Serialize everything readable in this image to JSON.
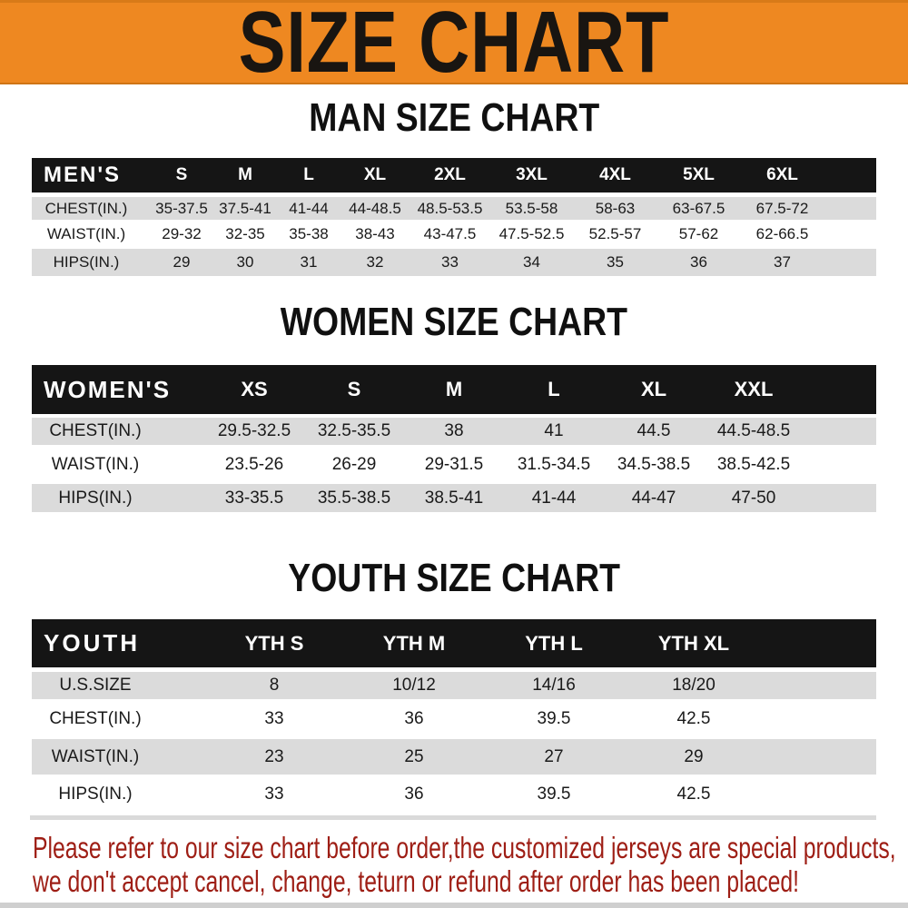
{
  "banner": {
    "title": "SIZE CHART"
  },
  "colors": {
    "banner_orange": "#ee8821",
    "header_black": "#151515",
    "row_gray": "#dbdbdb",
    "footer_red": "#9e1e15"
  },
  "sections": {
    "men": {
      "title": "MAN SIZE CHART",
      "table": {
        "label": "MEN'S",
        "columns": [
          "S",
          "M",
          "L",
          "XL",
          "2XL",
          "3XL",
          "4XL",
          "5XL",
          "6XL"
        ],
        "rows": [
          {
            "label": "CHEST(IN.)",
            "values": [
              "35-37.5",
              "37.5-41",
              "41-44",
              "44-48.5",
              "48.5-53.5",
              "53.5-58",
              "58-63",
              "63-67.5",
              "67.5-72"
            ]
          },
          {
            "label": "WAIST(IN.)",
            "values": [
              "29-32",
              "32-35",
              "35-38",
              "38-43",
              "43-47.5",
              "47.5-52.5",
              "52.5-57",
              "57-62",
              "62-66.5"
            ]
          },
          {
            "label": "HIPS(IN.)",
            "values": [
              "29",
              "30",
              "31",
              "32",
              "33",
              "34",
              "35",
              "36",
              "37"
            ]
          }
        ]
      }
    },
    "women": {
      "title": "WOMEN SIZE CHART",
      "table": {
        "label": "WOMEN'S",
        "columns": [
          "XS",
          "S",
          "M",
          "L",
          "XL",
          "XXL"
        ],
        "rows": [
          {
            "label": "CHEST(IN.)",
            "values": [
              "29.5-32.5",
              "32.5-35.5",
              "38",
              "41",
              "44.5",
              "44.5-48.5"
            ]
          },
          {
            "label": "WAIST(IN.)",
            "values": [
              "23.5-26",
              "26-29",
              "29-31.5",
              "31.5-34.5",
              "34.5-38.5",
              "38.5-42.5"
            ]
          },
          {
            "label": "HIPS(IN.)",
            "values": [
              "33-35.5",
              "35.5-38.5",
              "38.5-41",
              "41-44",
              "44-47",
              "47-50"
            ]
          }
        ]
      }
    },
    "youth": {
      "title": "YOUTH SIZE CHART",
      "table": {
        "label": "YOUTH",
        "columns": [
          "YTH S",
          "YTH M",
          "YTH L",
          "YTH XL"
        ],
        "rows": [
          {
            "label": "U.S.SIZE",
            "values": [
              "8",
              "10/12",
              "14/16",
              "18/20"
            ]
          },
          {
            "label": "CHEST(IN.)",
            "values": [
              "33",
              "36",
              "39.5",
              "42.5"
            ]
          },
          {
            "label": "WAIST(IN.)",
            "values": [
              "23",
              "25",
              "27",
              "29"
            ]
          },
          {
            "label": "HIPS(IN.)",
            "values": [
              "33",
              "36",
              "39.5",
              "42.5"
            ]
          }
        ]
      }
    }
  },
  "footer": {
    "line1": "Please refer to our size chart before order,the customized jerseys are special products,",
    "line2": "we don't accept cancel, change, teturn or refund after order has been placed!"
  }
}
